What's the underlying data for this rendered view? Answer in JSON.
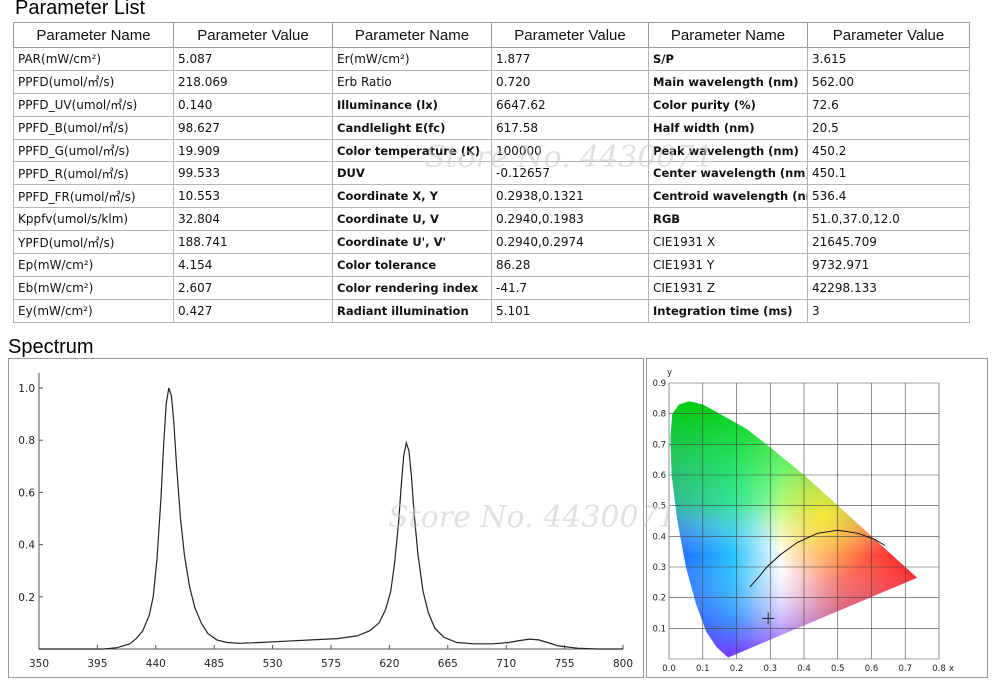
{
  "params_title": "Parameter List",
  "spectrum_title": "Spectrum",
  "table": {
    "headers": [
      "Parameter Name",
      "Parameter Value",
      "Parameter Name",
      "Parameter Value",
      "Parameter Name",
      "Parameter Value"
    ],
    "rows": [
      [
        "PAR(mW/cm²)",
        "5.087",
        "Er(mW/cm²)",
        "1.877",
        "S/P",
        "3.615"
      ],
      [
        "PPFD(umol/㎡/s)",
        "218.069",
        "Erb Ratio",
        "0.720",
        "Main wavelength (nm)",
        "562.00"
      ],
      [
        "PPFD_UV(umol/㎡/s)",
        "0.140",
        "Illuminance (lx)",
        "6647.62",
        "Color purity (%)",
        "72.6"
      ],
      [
        "PPFD_B(umol/㎡/s)",
        "98.627",
        "Candlelight E(fc)",
        "617.58",
        "Half width (nm)",
        "20.5"
      ],
      [
        "PPFD_G(umol/㎡/s)",
        "19.909",
        "Color temperature (K)",
        "100000",
        "Peak wavelength (nm)",
        "450.2"
      ],
      [
        "PPFD_R(umol/㎡/s)",
        "99.533",
        "DUV",
        "-0.12657",
        "Center wavelength (nm)",
        "450.1"
      ],
      [
        "PPFD_FR(umol/㎡/s)",
        "10.553",
        "Coordinate X, Y",
        "0.2938,0.1321",
        "Centroid wavelength (nm)",
        "536.4"
      ],
      [
        "Kppfv(umol/s/klm)",
        "32.804",
        "Coordinate U, V",
        "0.2940,0.1983",
        "RGB",
        "51.0,37.0,12.0"
      ],
      [
        "YPFD(umol/㎡/s)",
        "188.741",
        "Coordinate U', V'",
        "0.2940,0.2974",
        "CIE1931 X",
        "21645.709"
      ],
      [
        "Ep(mW/cm²)",
        "4.154",
        "Color tolerance",
        "86.28",
        "CIE1931 Y",
        "9732.971"
      ],
      [
        "Eb(mW/cm²)",
        "2.607",
        "Color rendering index",
        "-41.7",
        "CIE1931 Z",
        "42298.133"
      ],
      [
        "Ey(mW/cm²)",
        "0.427",
        "Radiant illumination",
        "5.101",
        "Integration time (ms)",
        "3"
      ]
    ]
  },
  "watermarks": [
    "Store No. 4430071",
    "Store No. 4430071"
  ],
  "chart_data": [
    {
      "type": "line",
      "title": "",
      "xlabel": "",
      "ylabel": "",
      "xlim": [
        350,
        800
      ],
      "ylim": [
        0,
        1.0
      ],
      "x_ticks": [
        350,
        395,
        440,
        485,
        530,
        575,
        620,
        665,
        710,
        755,
        800
      ],
      "y_ticks": [
        0.2,
        0.4,
        0.6,
        0.8,
        1.0
      ],
      "grid": false,
      "series": [
        {
          "x": [
            350,
            400,
            410,
            420,
            425,
            430,
            435,
            438,
            441,
            444,
            446,
            448,
            450,
            452,
            454,
            456,
            459,
            462,
            466,
            470,
            475,
            480,
            487,
            495,
            505,
            520,
            540,
            560,
            580,
            595,
            605,
            612,
            617,
            621,
            624,
            627,
            629,
            631,
            633,
            635,
            637,
            639,
            642,
            646,
            650,
            655,
            662,
            672,
            685,
            700,
            712,
            720,
            728,
            735,
            742,
            750,
            765,
            780,
            800
          ],
          "y": [
            0,
            0,
            0.005,
            0.02,
            0.04,
            0.07,
            0.13,
            0.2,
            0.35,
            0.58,
            0.78,
            0.94,
            1.0,
            0.97,
            0.86,
            0.7,
            0.5,
            0.36,
            0.24,
            0.16,
            0.1,
            0.06,
            0.035,
            0.025,
            0.022,
            0.025,
            0.03,
            0.035,
            0.04,
            0.05,
            0.07,
            0.1,
            0.15,
            0.22,
            0.33,
            0.48,
            0.62,
            0.74,
            0.79,
            0.76,
            0.66,
            0.52,
            0.36,
            0.22,
            0.14,
            0.08,
            0.045,
            0.025,
            0.02,
            0.02,
            0.025,
            0.032,
            0.038,
            0.035,
            0.025,
            0.012,
            0.003,
            0,
            0
          ]
        }
      ]
    },
    {
      "type": "scatter",
      "title": "",
      "xlabel": "x",
      "ylabel": "y",
      "xlim": [
        0,
        0.8
      ],
      "ylim": [
        0,
        0.9
      ],
      "x_ticks": [
        0.0,
        0.1,
        0.2,
        0.3,
        0.4,
        0.5,
        0.6,
        0.7,
        0.8
      ],
      "y_ticks": [
        0.1,
        0.2,
        0.3,
        0.4,
        0.5,
        0.6,
        0.7,
        0.8,
        0.9
      ],
      "grid": true,
      "locus": {
        "x": [
          0.175,
          0.17,
          0.16,
          0.14,
          0.11,
          0.08,
          0.05,
          0.025,
          0.008,
          0.004,
          0.01,
          0.03,
          0.06,
          0.1,
          0.15,
          0.23,
          0.3,
          0.4,
          0.5,
          0.6,
          0.68,
          0.735
        ],
        "y": [
          0.005,
          0.01,
          0.02,
          0.04,
          0.09,
          0.18,
          0.3,
          0.45,
          0.6,
          0.72,
          0.8,
          0.83,
          0.84,
          0.83,
          0.8,
          0.75,
          0.69,
          0.6,
          0.5,
          0.4,
          0.32,
          0.265
        ]
      },
      "planckian": {
        "x": [
          0.24,
          0.26,
          0.29,
          0.33,
          0.38,
          0.44,
          0.5,
          0.56,
          0.61,
          0.64
        ],
        "y": [
          0.235,
          0.26,
          0.3,
          0.34,
          0.38,
          0.41,
          0.42,
          0.41,
          0.39,
          0.37
        ]
      },
      "point": {
        "x": 0.2938,
        "y": 0.1321
      }
    }
  ]
}
